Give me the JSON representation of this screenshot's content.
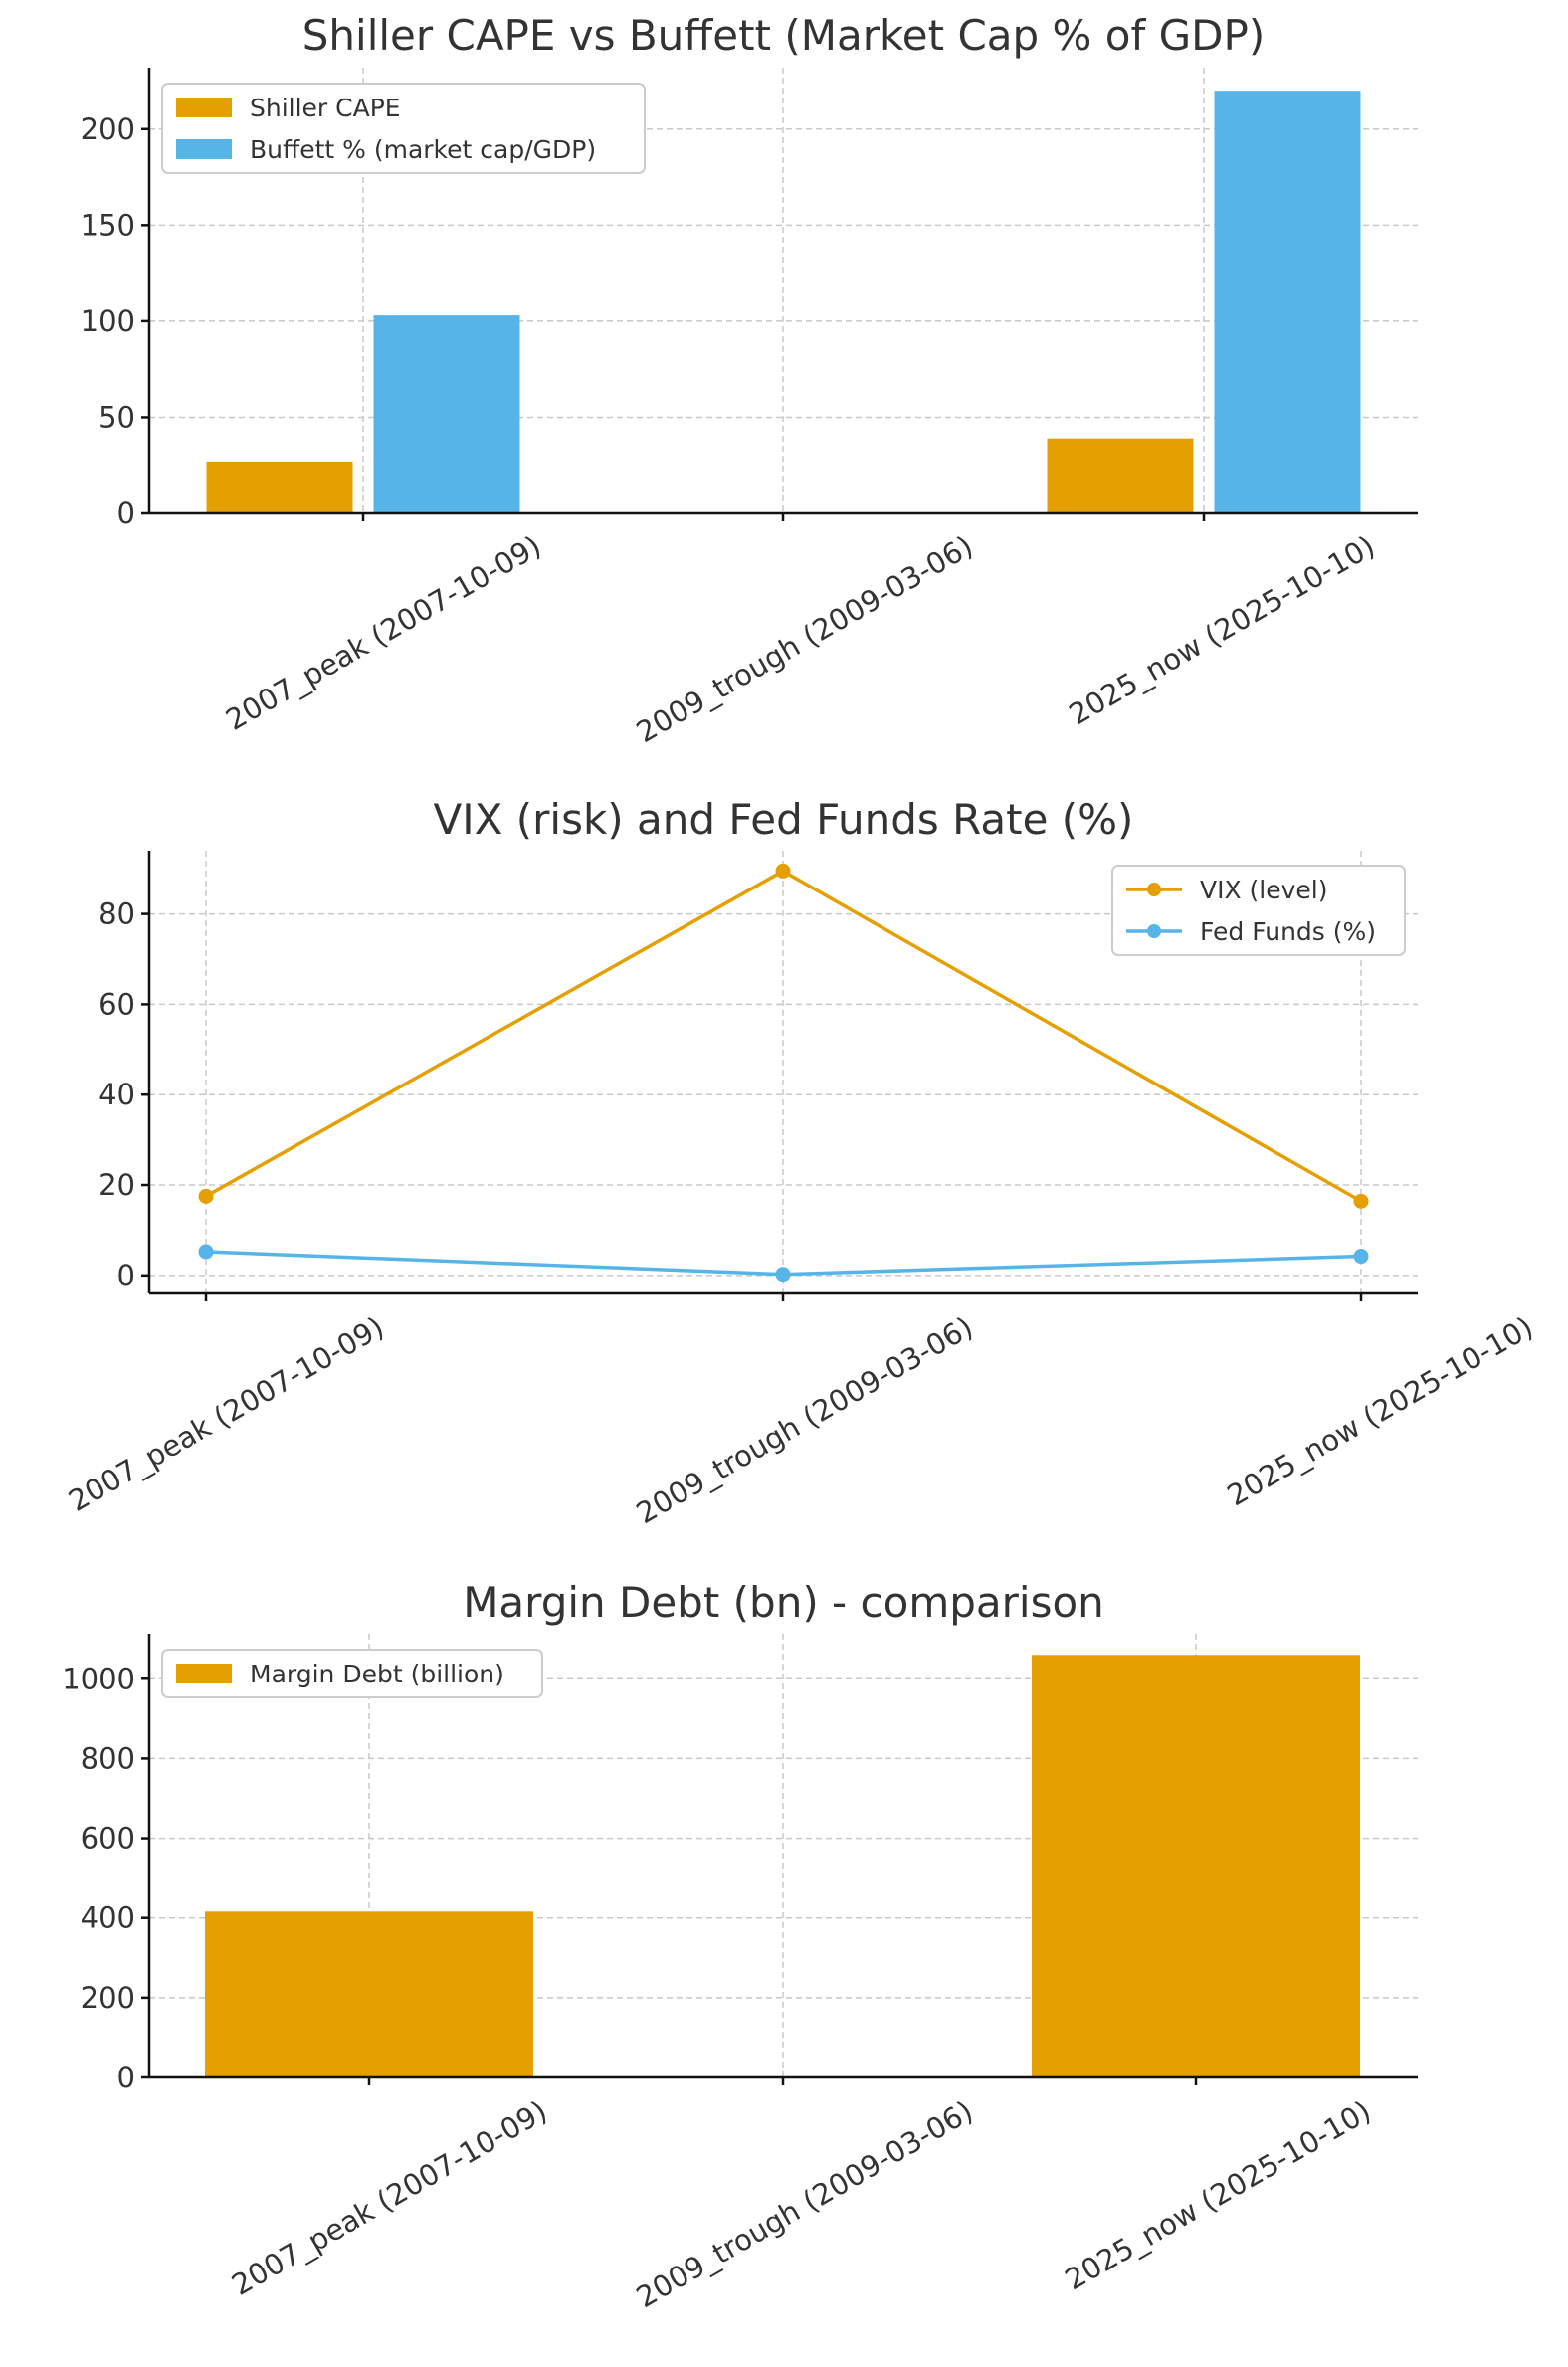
{
  "colors": {
    "orange": "#E69F00",
    "blue": "#56B4E9"
  },
  "chart_data": [
    {
      "type": "bar",
      "title": "Shiller CAPE vs Buffett (Market Cap % of GDP)",
      "categories": [
        "2007_peak (2007-10-09)",
        "2009_trough (2009-03-06)",
        "2025_now (2025-10-10)"
      ],
      "series": [
        {
          "name": "Shiller CAPE",
          "color": "#E69F00",
          "values": [
            27,
            null,
            39
          ]
        },
        {
          "name": "Buffett % (market cap/GDP)",
          "color": "#56B4E9",
          "values": [
            103,
            null,
            220
          ]
        }
      ],
      "ylim": [
        0,
        232
      ],
      "yticks": [
        0,
        50,
        100,
        150,
        200
      ],
      "legend": "top-left",
      "grid": true
    },
    {
      "type": "line",
      "title": "VIX (risk) and Fed Funds Rate (%)",
      "categories": [
        "2007_peak (2007-10-09)",
        "2009_trough (2009-03-06)",
        "2025_now (2025-10-10)"
      ],
      "series": [
        {
          "name": "VIX (level)",
          "color": "#E69F00",
          "values": [
            17.5,
            89.5,
            16.4
          ]
        },
        {
          "name": "Fed Funds (%)",
          "color": "#56B4E9",
          "values": [
            5.25,
            0.25,
            4.25
          ]
        }
      ],
      "ylim": [
        -4,
        94
      ],
      "yticks": [
        0,
        20,
        40,
        60,
        80
      ],
      "legend": "top-right",
      "grid": true
    },
    {
      "type": "bar",
      "title": "Margin Debt (bn) - comparison",
      "categories": [
        "2007_peak (2007-10-09)",
        "2009_trough (2009-03-06)",
        "2025_now (2025-10-10)"
      ],
      "series": [
        {
          "name": "Margin Debt (billion)",
          "color": "#E69F00",
          "values": [
            416,
            null,
            1060
          ]
        }
      ],
      "ylim": [
        0,
        1113
      ],
      "yticks": [
        0,
        200,
        400,
        600,
        800,
        1000
      ],
      "legend": "top-left",
      "grid": true
    }
  ]
}
